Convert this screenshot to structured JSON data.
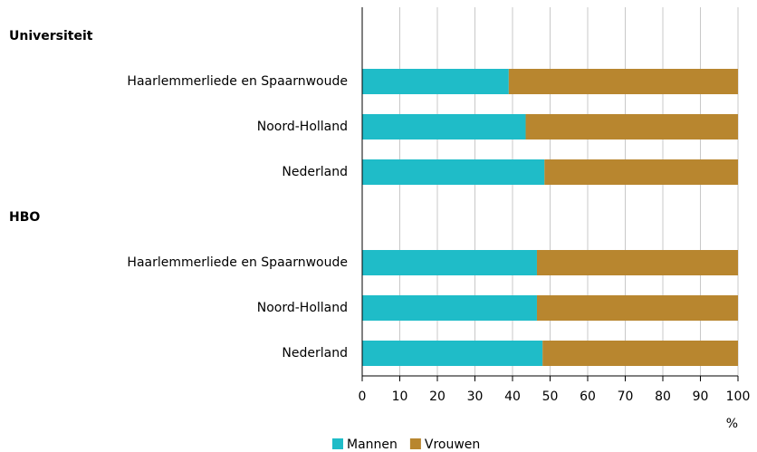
{
  "chart_data": {
    "type": "stacked-barh",
    "categories": [
      "Universiteit",
      "Haarlemmerliede en Spaarnwoude",
      "Noord-Holland",
      "Nederland",
      "HBO",
      "Haarlemmerliede en Spaarnwoude",
      "Noord-Holland",
      "Nederland"
    ],
    "series": [
      {
        "name": "Mannen",
        "color": "#1fbcc8",
        "values": [
          null,
          39,
          43.5,
          48.5,
          null,
          46.5,
          46.5,
          48
        ]
      },
      {
        "name": "Vrouwen",
        "color": "#b8862f",
        "values": [
          null,
          61,
          56.5,
          51.5,
          null,
          53.5,
          53.5,
          52
        ]
      }
    ],
    "xlabel": "%",
    "xlim": [
      0,
      100
    ],
    "xticks": [
      0,
      10,
      20,
      30,
      40,
      50,
      60,
      70,
      80,
      90,
      100
    ],
    "grid": true,
    "legend": "bottom"
  }
}
